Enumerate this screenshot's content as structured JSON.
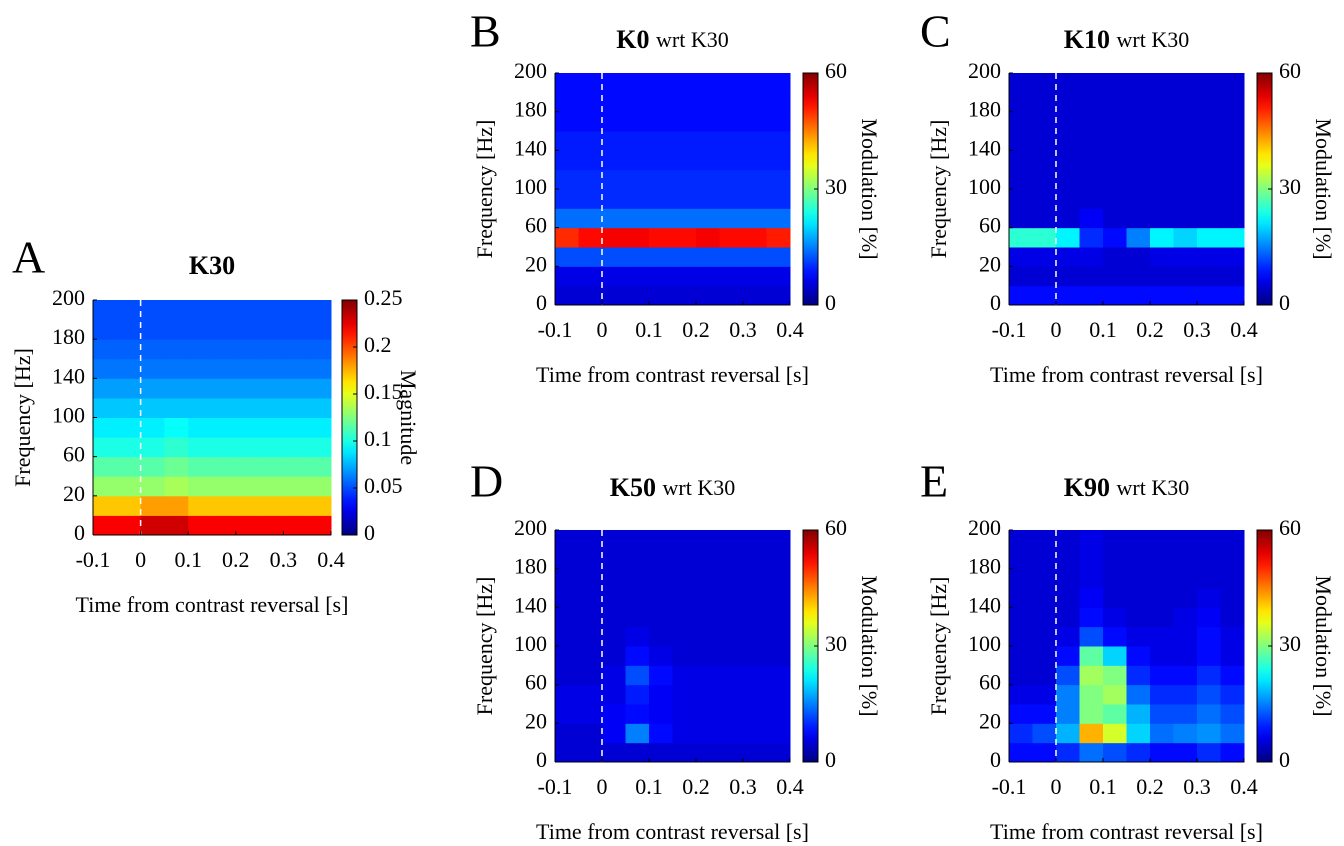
{
  "chart_data": [
    {
      "panel": "A",
      "type": "heatmap",
      "title": "K30",
      "xlabel": "Time from contrast reversal [s]",
      "ylabel": "Frequency [Hz]",
      "clabel": "Magnitude",
      "colormap": "jet",
      "x_edges": [
        -0.1,
        -0.05,
        0,
        0.05,
        0.1,
        0.15,
        0.2,
        0.25,
        0.3,
        0.35,
        0.4
      ],
      "y_edges": [
        0,
        10,
        20,
        40,
        60,
        80,
        100,
        120,
        140,
        160,
        180,
        190,
        200
      ],
      "z": [
        [
          0.22,
          0.22,
          0.23,
          0.23,
          0.22,
          0.22,
          0.22,
          0.22,
          0.22,
          0.22
        ],
        [
          0.17,
          0.17,
          0.18,
          0.18,
          0.17,
          0.17,
          0.17,
          0.17,
          0.17,
          0.17
        ],
        [
          0.13,
          0.13,
          0.13,
          0.135,
          0.13,
          0.13,
          0.13,
          0.13,
          0.13,
          0.13
        ],
        [
          0.115,
          0.115,
          0.115,
          0.12,
          0.115,
          0.115,
          0.115,
          0.115,
          0.115,
          0.115
        ],
        [
          0.1,
          0.1,
          0.1,
          0.105,
          0.1,
          0.1,
          0.1,
          0.1,
          0.1,
          0.1
        ],
        [
          0.09,
          0.09,
          0.09,
          0.095,
          0.09,
          0.09,
          0.09,
          0.09,
          0.09,
          0.09
        ],
        [
          0.08,
          0.08,
          0.08,
          0.08,
          0.08,
          0.08,
          0.08,
          0.08,
          0.08,
          0.08
        ],
        [
          0.07,
          0.07,
          0.07,
          0.07,
          0.07,
          0.07,
          0.07,
          0.07,
          0.07,
          0.07
        ],
        [
          0.06,
          0.06,
          0.06,
          0.06,
          0.06,
          0.06,
          0.06,
          0.06,
          0.06,
          0.06
        ],
        [
          0.055,
          0.055,
          0.055,
          0.055,
          0.055,
          0.055,
          0.055,
          0.055,
          0.055,
          0.055
        ],
        [
          0.05,
          0.05,
          0.05,
          0.05,
          0.05,
          0.05,
          0.05,
          0.05,
          0.05,
          0.05
        ],
        [
          0.05,
          0.05,
          0.05,
          0.05,
          0.05,
          0.05,
          0.05,
          0.05,
          0.05,
          0.05
        ]
      ],
      "vline": 0,
      "xlim": [
        -0.1,
        0.4
      ],
      "xticks": [
        -0.1,
        0,
        0.1,
        0.2,
        0.3,
        0.4
      ],
      "ylim": [
        0,
        200
      ],
      "yticks": [
        0,
        20,
        60,
        100,
        140,
        180,
        200
      ],
      "clim": [
        0,
        0.25
      ],
      "cticks": [
        0,
        0.05,
        0.1,
        0.15,
        0.2,
        0.25
      ]
    },
    {
      "panel": "B",
      "type": "heatmap",
      "title": "K0",
      "title_suffix": "wrt K30",
      "xlabel": "Time from contrast reversal [s]",
      "ylabel": "Frequency [Hz]",
      "clabel": "Modulation [%]",
      "colormap": "jet",
      "x_edges": [
        -0.1,
        -0.05,
        0,
        0.05,
        0.1,
        0.15,
        0.2,
        0.25,
        0.3,
        0.35,
        0.4
      ],
      "y_edges": [
        0,
        10,
        20,
        40,
        60,
        80,
        100,
        120,
        140,
        160,
        180,
        190,
        200
      ],
      "z": [
        [
          5,
          5,
          5,
          5,
          5,
          5,
          5,
          5,
          5,
          5
        ],
        [
          6,
          6,
          6,
          6,
          6,
          6,
          6,
          6,
          6,
          6
        ],
        [
          12,
          12,
          12,
          12,
          12,
          12,
          12,
          12,
          12,
          12
        ],
        [
          50,
          52,
          53,
          53,
          52,
          52,
          53,
          52,
          52,
          51
        ],
        [
          14,
          14,
          14,
          14,
          14,
          14,
          14,
          14,
          14,
          14
        ],
        [
          10,
          10,
          10,
          10,
          10,
          10,
          10,
          10,
          10,
          10
        ],
        [
          10,
          10,
          10,
          10,
          10,
          10,
          10,
          10,
          10,
          10
        ],
        [
          9,
          9,
          9,
          9,
          9,
          9,
          9,
          9,
          9,
          9
        ],
        [
          9,
          9,
          9,
          9,
          9,
          9,
          9,
          9,
          9,
          9
        ],
        [
          8,
          8,
          8,
          8,
          8,
          8,
          8,
          8,
          8,
          8
        ],
        [
          8,
          8,
          8,
          8,
          8,
          8,
          8,
          8,
          8,
          8
        ],
        [
          8,
          8,
          8,
          8,
          8,
          8,
          8,
          8,
          8,
          8
        ]
      ],
      "vline": 0,
      "xlim": [
        -0.1,
        0.4
      ],
      "xticks": [
        -0.1,
        0,
        0.1,
        0.2,
        0.3,
        0.4
      ],
      "ylim": [
        0,
        200
      ],
      "yticks": [
        0,
        20,
        60,
        100,
        140,
        180,
        200
      ],
      "clim": [
        0,
        60
      ],
      "cticks": [
        0,
        30,
        60
      ]
    },
    {
      "panel": "C",
      "type": "heatmap",
      "title": "K10",
      "title_suffix": "wrt K30",
      "xlabel": "Time from contrast reversal [s]",
      "ylabel": "Frequency [Hz]",
      "clabel": "Modulation [%]",
      "colormap": "jet",
      "x_edges": [
        -0.1,
        -0.05,
        0,
        0.05,
        0.1,
        0.15,
        0.2,
        0.25,
        0.3,
        0.35,
        0.4
      ],
      "y_edges": [
        0,
        10,
        20,
        40,
        60,
        80,
        100,
        120,
        140,
        160,
        180,
        190,
        200
      ],
      "z": [
        [
          8,
          8,
          8,
          8,
          8,
          8,
          8,
          8,
          8,
          8
        ],
        [
          5,
          5,
          5,
          5,
          5,
          5,
          5,
          5,
          5,
          5
        ],
        [
          6,
          6,
          6,
          6,
          5,
          5,
          6,
          6,
          6,
          6
        ],
        [
          25,
          25,
          22,
          10,
          8,
          15,
          22,
          20,
          22,
          22
        ],
        [
          5,
          5,
          5,
          7,
          5,
          5,
          5,
          5,
          5,
          5
        ],
        [
          5,
          5,
          5,
          5,
          5,
          5,
          5,
          5,
          5,
          5
        ],
        [
          5,
          5,
          5,
          5,
          5,
          5,
          5,
          5,
          5,
          5
        ],
        [
          5,
          5,
          5,
          5,
          5,
          5,
          5,
          5,
          5,
          5
        ],
        [
          5,
          5,
          5,
          5,
          5,
          5,
          5,
          5,
          5,
          5
        ],
        [
          5,
          5,
          5,
          5,
          5,
          5,
          5,
          5,
          5,
          5
        ],
        [
          5,
          5,
          5,
          5,
          5,
          5,
          5,
          5,
          5,
          5
        ],
        [
          5,
          5,
          5,
          5,
          5,
          5,
          5,
          5,
          5,
          5
        ]
      ],
      "vline": 0,
      "xlim": [
        -0.1,
        0.4
      ],
      "xticks": [
        -0.1,
        0,
        0.1,
        0.2,
        0.3,
        0.4
      ],
      "ylim": [
        0,
        200
      ],
      "yticks": [
        0,
        20,
        60,
        100,
        140,
        180,
        200
      ],
      "clim": [
        0,
        60
      ],
      "cticks": [
        0,
        30,
        60
      ]
    },
    {
      "panel": "D",
      "type": "heatmap",
      "title": "K50",
      "title_suffix": "wrt K30",
      "xlabel": "Time from contrast reversal [s]",
      "ylabel": "Frequency [Hz]",
      "clabel": "Modulation [%]",
      "colormap": "jet",
      "x_edges": [
        -0.1,
        -0.05,
        0,
        0.05,
        0.1,
        0.15,
        0.2,
        0.25,
        0.3,
        0.35,
        0.4
      ],
      "y_edges": [
        0,
        10,
        20,
        40,
        60,
        80,
        100,
        120,
        140,
        160,
        180,
        190,
        200
      ],
      "z": [
        [
          5,
          5,
          5,
          5,
          5,
          5,
          5,
          5,
          5,
          5
        ],
        [
          5,
          5,
          7,
          15,
          8,
          6,
          6,
          6,
          6,
          6
        ],
        [
          6,
          6,
          7,
          8,
          7,
          6,
          6,
          6,
          6,
          6
        ],
        [
          6,
          6,
          6,
          9,
          7,
          6,
          6,
          6,
          6,
          6
        ],
        [
          5,
          5,
          6,
          12,
          8,
          6,
          6,
          6,
          6,
          6
        ],
        [
          5,
          5,
          5,
          8,
          6,
          5,
          5,
          5,
          5,
          5
        ],
        [
          5,
          5,
          5,
          6,
          5,
          5,
          5,
          5,
          5,
          5
        ],
        [
          5,
          5,
          5,
          5,
          5,
          5,
          5,
          5,
          5,
          5
        ],
        [
          5,
          5,
          5,
          5,
          5,
          5,
          5,
          5,
          5,
          5
        ],
        [
          5,
          5,
          5,
          5,
          5,
          5,
          5,
          5,
          5,
          5
        ],
        [
          5,
          5,
          5,
          5,
          5,
          5,
          5,
          5,
          5,
          5
        ],
        [
          5,
          5,
          5,
          5,
          5,
          5,
          5,
          5,
          5,
          5
        ]
      ],
      "vline": 0,
      "xlim": [
        -0.1,
        0.4
      ],
      "xticks": [
        -0.1,
        0,
        0.1,
        0.2,
        0.3,
        0.4
      ],
      "ylim": [
        0,
        200
      ],
      "yticks": [
        0,
        20,
        60,
        100,
        140,
        180,
        200
      ],
      "clim": [
        0,
        60
      ],
      "cticks": [
        0,
        30,
        60
      ]
    },
    {
      "panel": "E",
      "type": "heatmap",
      "title": "K90",
      "title_suffix": "wrt K30",
      "xlabel": "Time from contrast reversal [s]",
      "ylabel": "Frequency [Hz]",
      "clabel": "Modulation [%]",
      "colormap": "jet",
      "x_edges": [
        -0.1,
        -0.05,
        0,
        0.05,
        0.1,
        0.15,
        0.2,
        0.25,
        0.3,
        0.35,
        0.4
      ],
      "y_edges": [
        0,
        10,
        20,
        40,
        60,
        80,
        100,
        120,
        140,
        160,
        180,
        190,
        200
      ],
      "z": [
        [
          8,
          8,
          10,
          14,
          12,
          10,
          8,
          8,
          10,
          8
        ],
        [
          10,
          12,
          18,
          42,
          35,
          20,
          14,
          15,
          16,
          14
        ],
        [
          8,
          8,
          15,
          30,
          28,
          18,
          12,
          12,
          14,
          12
        ],
        [
          6,
          6,
          15,
          30,
          32,
          14,
          10,
          10,
          12,
          10
        ],
        [
          5,
          5,
          12,
          32,
          30,
          10,
          8,
          8,
          10,
          8
        ],
        [
          5,
          5,
          8,
          28,
          20,
          8,
          6,
          6,
          8,
          6
        ],
        [
          5,
          5,
          6,
          12,
          8,
          6,
          6,
          6,
          8,
          6
        ],
        [
          5,
          5,
          5,
          8,
          6,
          5,
          5,
          6,
          7,
          5
        ],
        [
          5,
          5,
          5,
          7,
          5,
          5,
          5,
          5,
          6,
          5
        ],
        [
          5,
          5,
          5,
          6,
          5,
          5,
          5,
          5,
          5,
          5
        ],
        [
          5,
          5,
          5,
          6,
          5,
          5,
          5,
          5,
          5,
          5
        ],
        [
          5,
          5,
          5,
          6,
          5,
          5,
          5,
          5,
          5,
          5
        ]
      ],
      "vline": 0,
      "xlim": [
        -0.1,
        0.4
      ],
      "xticks": [
        -0.1,
        0,
        0.1,
        0.2,
        0.3,
        0.4
      ],
      "ylim": [
        0,
        200
      ],
      "yticks": [
        0,
        20,
        60,
        100,
        140,
        180,
        200
      ],
      "clim": [
        0,
        60
      ],
      "cticks": [
        0,
        30,
        60
      ]
    }
  ]
}
